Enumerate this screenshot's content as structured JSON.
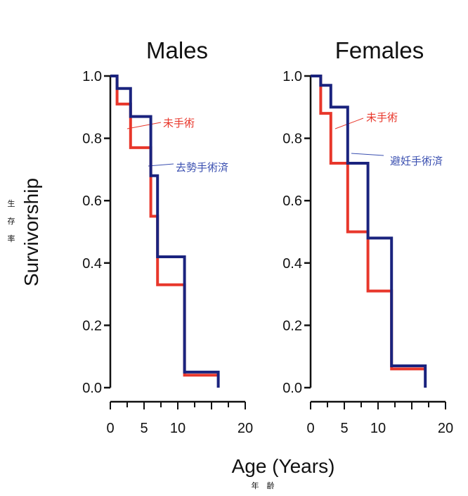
{
  "chart_data": [
    {
      "type": "line",
      "step": true,
      "title": "Males",
      "xlabel": "Age (Years)",
      "ylabel": "Survivorship",
      "xlim": [
        0,
        20
      ],
      "ylim": [
        0,
        1
      ],
      "x_ticks": [
        "0",
        "5",
        "10",
        "20"
      ],
      "y_ticks": [
        "0.0",
        "0.2",
        "0.4",
        "0.6",
        "0.8",
        "1.0"
      ],
      "series": [
        {
          "name": "未手術",
          "color": "#e8372b",
          "x": [
            0,
            1,
            2,
            3,
            4.5,
            6,
            7,
            11,
            16
          ],
          "y": [
            1.0,
            0.91,
            0.91,
            0.77,
            0.77,
            0.55,
            0.33,
            0.04,
            0.04
          ]
        },
        {
          "name": "去勢手術済",
          "color": "#1a237e",
          "x": [
            0,
            1,
            2,
            3,
            4.5,
            6,
            7,
            11,
            16
          ],
          "y": [
            1.0,
            0.96,
            0.96,
            0.87,
            0.87,
            0.68,
            0.42,
            0.05,
            0.0
          ]
        }
      ]
    },
    {
      "type": "line",
      "step": true,
      "title": "Females",
      "xlabel": "Age (Years)",
      "ylabel": "Survivorship",
      "xlim": [
        0,
        20
      ],
      "ylim": [
        0,
        1
      ],
      "x_ticks": [
        "0",
        "5",
        "10",
        "20"
      ],
      "y_ticks": [
        "0.0",
        "0.2",
        "0.4",
        "0.6",
        "0.8",
        "1.0"
      ],
      "series": [
        {
          "name": "未手術",
          "color": "#e8372b",
          "x": [
            0,
            1.5,
            3,
            5.5,
            8.5,
            12,
            17
          ],
          "y": [
            1.0,
            0.88,
            0.72,
            0.5,
            0.31,
            0.06,
            0.06
          ]
        },
        {
          "name": "避妊手術済",
          "color": "#1a237e",
          "x": [
            0,
            1.5,
            3,
            5.5,
            8.5,
            12,
            17
          ],
          "y": [
            1.0,
            0.97,
            0.9,
            0.72,
            0.48,
            0.07,
            0.0
          ]
        }
      ]
    }
  ],
  "labels": {
    "ylabel": "Survivorship",
    "ylabel_jp_1": "生",
    "ylabel_jp_2": "存",
    "ylabel_jp_3": "率",
    "xlabel": "Age (Years)",
    "xlabel_jp": "年　齢"
  },
  "colors": {
    "red": "#e8372b",
    "blue": "#1a237e",
    "label_blue": "#3a4fb0",
    "axis": "#111111"
  }
}
